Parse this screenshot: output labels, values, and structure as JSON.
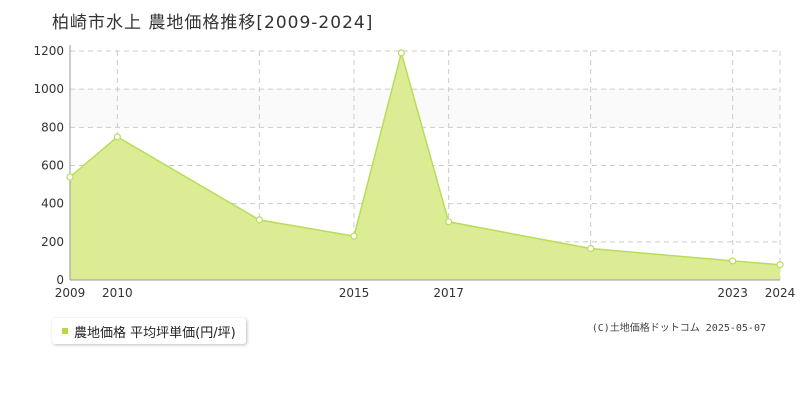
{
  "title": "柏崎市水上 農地価格推移[2009-2024]",
  "legend": {
    "label": "農地価格 平均坪単価(円/坪)"
  },
  "copyright": "(C)土地価格ドットコム 2025-05-07",
  "colors": {
    "fill": "#dcec94",
    "line": "#b7dd5a",
    "marker_fill": "#ffffff",
    "marker_stroke": "#b7dd5a",
    "swatch": "#b3d94a"
  },
  "chart_data": {
    "type": "area",
    "series": [
      {
        "name": "農地価格 平均坪単価(円/坪)",
        "x": [
          2009,
          2010,
          2013,
          2015,
          2016,
          2017,
          2020,
          2023,
          2024
        ],
        "values": [
          540,
          750,
          315,
          230,
          1190,
          305,
          165,
          100,
          80
        ]
      }
    ],
    "x_ticks": [
      2009,
      2010,
      2015,
      2017,
      2023,
      2024
    ],
    "y_ticks": [
      0,
      200,
      400,
      600,
      800,
      1000,
      1200
    ],
    "xlim": [
      2009,
      2024
    ],
    "ylim": [
      0,
      1200
    ],
    "grid": true,
    "legend_position": "bottom-left"
  }
}
